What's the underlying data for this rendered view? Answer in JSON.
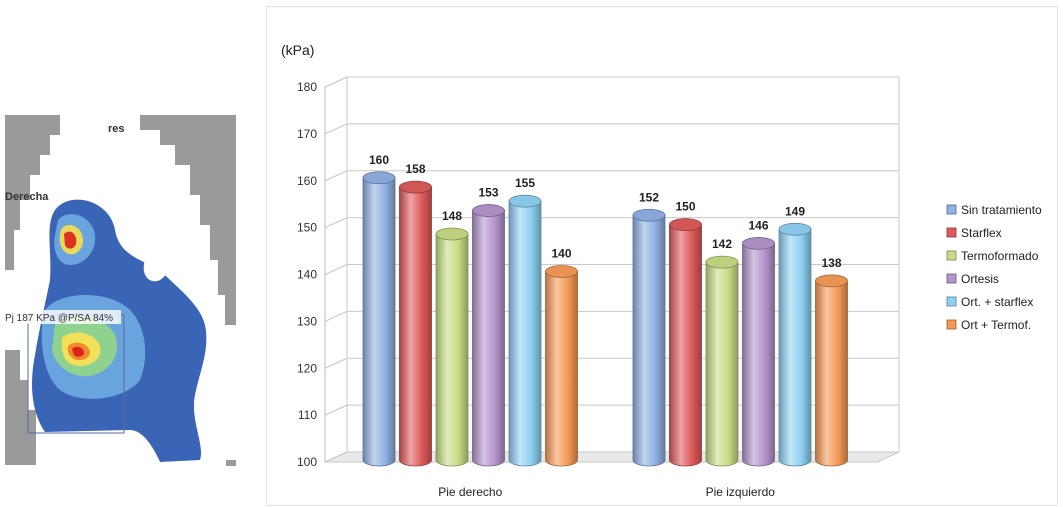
{
  "left_image": {
    "label_top": "res",
    "label_side": "Derecha",
    "roi_label": "Pj 187 KPa @P/SA 84%"
  },
  "chart_data": {
    "type": "bar",
    "unit_label": "(kPa)",
    "categories": [
      "Pie derecho",
      "Pie izquierdo"
    ],
    "series": [
      {
        "name": "Sin tratamiento",
        "color": "#8fb0e3",
        "values": [
          160,
          152
        ]
      },
      {
        "name": "Starflex",
        "color": "#de5a5a",
        "values": [
          158,
          150
        ]
      },
      {
        "name": "Termoformado",
        "color": "#c7dc84",
        "values": [
          148,
          142
        ]
      },
      {
        "name": "Ortesis",
        "color": "#b494cc",
        "values": [
          153,
          146
        ]
      },
      {
        "name": "Ort. + starflex",
        "color": "#8ed0f2",
        "values": [
          155,
          149
        ]
      },
      {
        "name": "Ort + Termof.",
        "color": "#f59a55",
        "values": [
          140,
          138
        ]
      }
    ],
    "ylim": [
      100,
      180
    ],
    "yticks": [
      100,
      110,
      120,
      130,
      140,
      150,
      160,
      170,
      180
    ],
    "grid": true,
    "legend_position": "right",
    "style": "3d-cylinder"
  }
}
